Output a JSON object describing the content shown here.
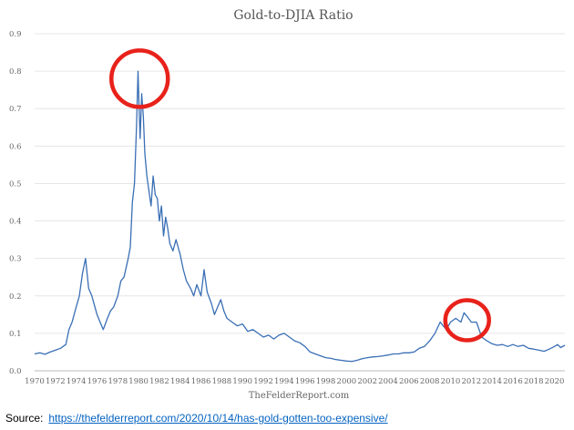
{
  "chart_data": {
    "type": "line",
    "title": "Gold-to-DJIA Ratio",
    "xlabel": "",
    "ylabel": "",
    "watermark": "TheFelderReport.com",
    "xlim": [
      1970,
      2021
    ],
    "ylim": [
      0,
      0.9
    ],
    "y_ticks": [
      "0.0",
      "0.1",
      "0.2",
      "0.3",
      "0.4",
      "0.5",
      "0.6",
      "0.7",
      "0.8",
      "0.9"
    ],
    "x_ticks": [
      "1970",
      "1972",
      "1974",
      "1976",
      "1978",
      "1980",
      "1982",
      "1984",
      "1986",
      "1988",
      "1990",
      "1992",
      "1994",
      "1996",
      "1998",
      "2000",
      "2002",
      "2004",
      "2006",
      "2008",
      "2010",
      "2012",
      "2014",
      "2016",
      "2018",
      "2020"
    ],
    "grid": "horizontal",
    "line_color": "#3a6fb5",
    "highlight_color": "#e8221b",
    "highlights": [
      {
        "x": 1980.1,
        "y": 0.78
      },
      {
        "x": 2011.6,
        "y": 0.135
      }
    ],
    "series": [
      {
        "x": [
          1970,
          1970.5,
          1971,
          1971.5,
          1972,
          1972.5,
          1973,
          1973.3,
          1973.6,
          1974,
          1974.3,
          1974.6,
          1974.9,
          1975.2,
          1975.5,
          1975.8,
          1976,
          1976.3,
          1976.6,
          1977,
          1977.3,
          1977.6,
          1978,
          1978.3,
          1978.6,
          1979,
          1979.2,
          1979.4,
          1979.6,
          1979.8,
          1979.95,
          1980.05,
          1980.15,
          1980.3,
          1980.45,
          1980.6,
          1980.8,
          1981,
          1981.2,
          1981.4,
          1981.6,
          1981.8,
          1982,
          1982.2,
          1982.4,
          1982.6,
          1982.8,
          1983,
          1983.3,
          1983.6,
          1984,
          1984.3,
          1984.6,
          1985,
          1985.3,
          1985.6,
          1986,
          1986.3,
          1986.6,
          1987,
          1987.3,
          1987.6,
          1987.9,
          1988.2,
          1988.5,
          1989,
          1989.5,
          1990,
          1990.5,
          1991,
          1991.5,
          1992,
          1992.5,
          1993,
          1993.5,
          1994,
          1994.5,
          1995,
          1995.5,
          1996,
          1996.5,
          1997,
          1997.5,
          1998,
          1998.5,
          1999,
          1999.5,
          2000,
          2000.5,
          2001,
          2001.5,
          2002,
          2002.5,
          2003,
          2003.5,
          2004,
          2004.5,
          2005,
          2005.5,
          2006,
          2006.5,
          2007,
          2007.5,
          2008,
          2008.5,
          2009,
          2009.3,
          2009.6,
          2010,
          2010.5,
          2011,
          2011.3,
          2011.6,
          2012,
          2012.5,
          2013,
          2013.5,
          2014,
          2014.5,
          2015,
          2015.5,
          2016,
          2016.5,
          2017,
          2017.5,
          2018,
          2018.5,
          2019,
          2019.5,
          2020,
          2020.3,
          2020.6,
          2021
        ],
        "y": [
          0.045,
          0.048,
          0.044,
          0.05,
          0.055,
          0.06,
          0.07,
          0.11,
          0.13,
          0.17,
          0.2,
          0.26,
          0.3,
          0.22,
          0.2,
          0.17,
          0.15,
          0.13,
          0.11,
          0.14,
          0.16,
          0.17,
          0.2,
          0.24,
          0.25,
          0.3,
          0.33,
          0.45,
          0.5,
          0.65,
          0.8,
          0.7,
          0.62,
          0.74,
          0.68,
          0.58,
          0.52,
          0.48,
          0.44,
          0.52,
          0.47,
          0.46,
          0.4,
          0.44,
          0.36,
          0.41,
          0.38,
          0.34,
          0.32,
          0.35,
          0.31,
          0.27,
          0.24,
          0.22,
          0.2,
          0.23,
          0.2,
          0.27,
          0.21,
          0.18,
          0.15,
          0.17,
          0.19,
          0.16,
          0.14,
          0.13,
          0.12,
          0.125,
          0.105,
          0.11,
          0.1,
          0.09,
          0.095,
          0.085,
          0.095,
          0.1,
          0.09,
          0.08,
          0.075,
          0.065,
          0.05,
          0.045,
          0.04,
          0.035,
          0.033,
          0.03,
          0.028,
          0.026,
          0.025,
          0.028,
          0.032,
          0.035,
          0.037,
          0.038,
          0.04,
          0.042,
          0.045,
          0.045,
          0.048,
          0.048,
          0.05,
          0.06,
          0.065,
          0.08,
          0.1,
          0.13,
          0.12,
          0.11,
          0.13,
          0.14,
          0.13,
          0.155,
          0.145,
          0.13,
          0.13,
          0.09,
          0.08,
          0.072,
          0.068,
          0.07,
          0.065,
          0.07,
          0.065,
          0.068,
          0.06,
          0.058,
          0.055,
          0.052,
          0.058,
          0.065,
          0.07,
          0.062,
          0.068
        ]
      }
    ]
  },
  "source": {
    "label": "Source:",
    "link_text": "https://thefelderreport.com/2020/10/14/has-gold-gotten-too-expensive/"
  }
}
